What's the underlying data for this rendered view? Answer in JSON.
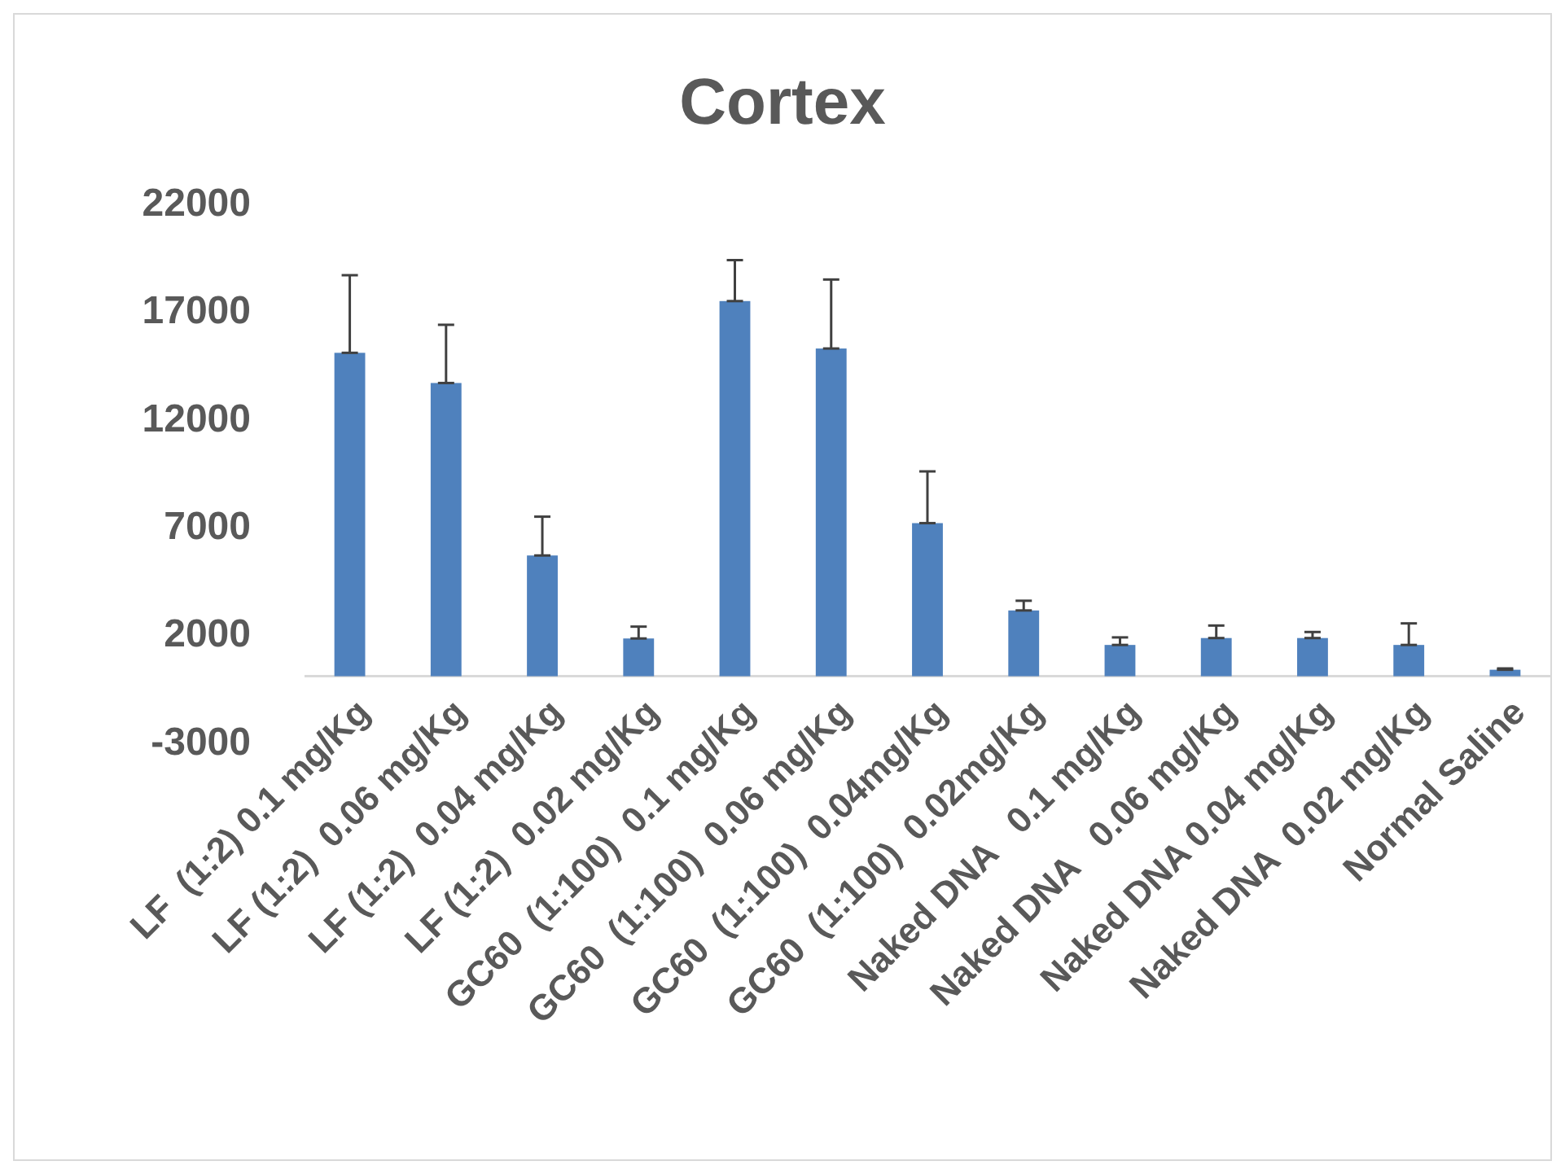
{
  "chart_data": {
    "type": "bar",
    "title": "Cortex",
    "categories": [
      "LF  (1:2) 0.1 mg/Kg",
      "LF (1:2)  0.06 mg/Kg",
      "LF (1:2)  0.04 mg/Kg",
      "LF (1:2)  0.02 mg/Kg",
      "GC60  (1:100)  0.1 mg/Kg",
      "GC60  (1:100)  0.06 mg/Kg",
      "GC60  (1:100)  0.04mg/Kg",
      "GC60  (1:100)  0.02mg/Kg",
      "Naked DNA   0.1 mg/Kg",
      "Naked DNA   0.06 mg/Kg",
      "Naked DNA 0.04 mg/Kg",
      "Naked DNA  0.02 mg/Kg",
      "Normal Saline"
    ],
    "values": [
      15000,
      13600,
      5600,
      1750,
      17400,
      15200,
      7100,
      3050,
      1450,
      1770,
      1770,
      1450,
      300
    ],
    "errors": [
      [
        15000,
        18600
      ],
      [
        13600,
        16300
      ],
      [
        5600,
        7400
      ],
      [
        1750,
        2300
      ],
      [
        17400,
        19300
      ],
      [
        15200,
        18400
      ],
      [
        7100,
        9500
      ],
      [
        3050,
        3500
      ],
      [
        1450,
        1800
      ],
      [
        1770,
        2350
      ],
      [
        1770,
        2050
      ],
      [
        1450,
        2450
      ],
      [
        300,
        360
      ]
    ],
    "color": "#4f81bd",
    "ylim": [
      -3000,
      22000
    ],
    "yticks": [
      -3000,
      2000,
      7000,
      12000,
      17000,
      22000
    ],
    "grid": false
  }
}
